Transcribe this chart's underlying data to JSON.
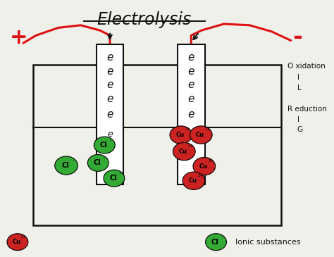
{
  "title": "Electrolysis",
  "background_color": "#f0f0eb",
  "title_fontsize": 17,
  "title_color": "#111111",
  "plus_label": "+",
  "minus_label": "-",
  "oil_text": [
    "O xidation",
    "I",
    "L"
  ],
  "rig_text": [
    "R eduction",
    "I",
    "G"
  ],
  "ionic_label": "Ionic substances",
  "cu_label": "Cu",
  "cu_superscript": "2+",
  "cl_label": "Cl",
  "cl_superscript": "-",
  "red_color": "#cc2222",
  "green_color": "#33aa33",
  "black_color": "#111111",
  "red_wire_color": "#dd1111"
}
